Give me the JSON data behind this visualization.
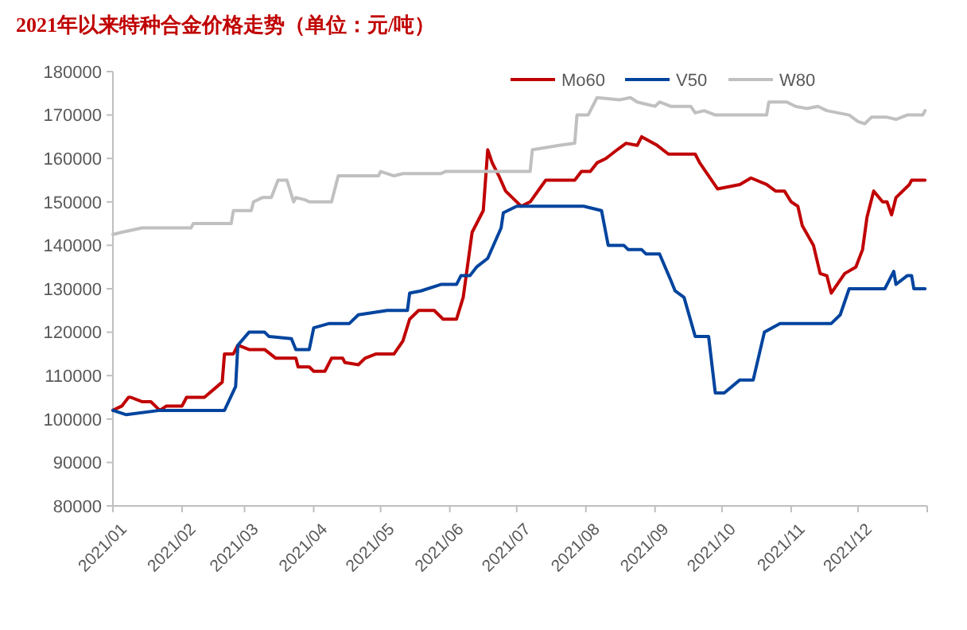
{
  "chart_data": {
    "type": "line",
    "title": "2021年以来特种合金价格走势（单位：元/吨）",
    "xlim": [
      "2021-01-01",
      "2022-01-01"
    ],
    "xticks": [
      {
        "value": "2021-01-01",
        "label": "2021/01"
      },
      {
        "value": "2021-02-01",
        "label": "2021/02"
      },
      {
        "value": "2021-03-01",
        "label": "2021/03"
      },
      {
        "value": "2021-04-01",
        "label": "2021/04"
      },
      {
        "value": "2021-05-01",
        "label": "2021/05"
      },
      {
        "value": "2021-06-01",
        "label": "2021/06"
      },
      {
        "value": "2021-07-01",
        "label": "2021/07"
      },
      {
        "value": "2021-08-01",
        "label": "2021/08"
      },
      {
        "value": "2021-09-01",
        "label": "2021/09"
      },
      {
        "value": "2021-10-01",
        "label": "2021/10"
      },
      {
        "value": "2021-11-01",
        "label": "2021/11"
      },
      {
        "value": "2021-12-01",
        "label": "2021/12"
      },
      {
        "value": "2022-01-01",
        "label": null
      }
    ],
    "ylim": [
      80000,
      180000
    ],
    "yticks": [
      80000,
      90000,
      100000,
      110000,
      120000,
      130000,
      140000,
      150000,
      160000,
      170000,
      180000
    ],
    "grid": false,
    "legend": "top right",
    "marker": "none",
    "line_style": "solid",
    "series": [
      {
        "name": "Mo60",
        "color": "#c00000",
        "x": [
          "2021-01-01",
          "2021-01-05",
          "2021-01-08",
          "2021-01-09",
          "2021-01-14",
          "2021-01-18",
          "2021-01-22",
          "2021-01-25",
          "2021-02-01",
          "2021-02-03",
          "2021-02-11",
          "2021-02-19",
          "2021-02-20",
          "2021-02-24",
          "2021-02-26",
          "2021-03-03",
          "2021-03-10",
          "2021-03-15",
          "2021-03-24",
          "2021-03-25",
          "2021-03-30",
          "2021-04-01",
          "2021-04-06",
          "2021-04-09",
          "2021-04-14",
          "2021-04-15",
          "2021-04-21",
          "2021-04-24",
          "2021-04-29",
          "2021-05-07",
          "2021-05-11",
          "2021-05-14",
          "2021-05-18",
          "2021-05-25",
          "2021-05-29",
          "2021-06-04",
          "2021-06-07",
          "2021-06-11",
          "2021-06-16",
          "2021-06-18",
          "2021-06-20",
          "2021-06-23",
          "2021-06-26",
          "2021-06-30",
          "2021-07-03",
          "2021-07-07",
          "2021-07-14",
          "2021-07-27",
          "2021-07-30",
          "2021-08-03",
          "2021-08-06",
          "2021-08-10",
          "2021-08-15",
          "2021-08-19",
          "2021-08-24",
          "2021-08-26",
          "2021-09-02",
          "2021-09-07",
          "2021-09-19",
          "2021-09-21",
          "2021-09-29",
          "2021-10-09",
          "2021-10-14",
          "2021-10-21",
          "2021-10-25",
          "2021-10-29",
          "2021-11-01",
          "2021-11-04",
          "2021-11-06",
          "2021-11-11",
          "2021-11-14",
          "2021-11-17",
          "2021-11-19",
          "2021-11-25",
          "2021-11-30",
          "2021-12-03",
          "2021-12-05",
          "2021-12-08",
          "2021-12-12",
          "2021-12-14",
          "2021-12-16",
          "2021-12-18",
          "2021-12-24",
          "2021-12-25",
          "2021-12-30",
          "2021-12-31"
        ],
        "values": [
          102000,
          103000,
          105000,
          105000,
          104000,
          104000,
          102000,
          103000,
          103000,
          105000,
          105000,
          108500,
          115000,
          115000,
          117000,
          116000,
          116000,
          114000,
          114000,
          112000,
          112000,
          111000,
          111000,
          114000,
          114000,
          113000,
          112500,
          114000,
          115000,
          115000,
          118000,
          123000,
          125000,
          125000,
          123000,
          123000,
          128000,
          143000,
          148000,
          162000,
          159000,
          156000,
          152500,
          150500,
          149000,
          150000,
          155000,
          155000,
          157000,
          157000,
          159000,
          160000,
          162000,
          163500,
          163000,
          165000,
          163000,
          161000,
          161000,
          159000,
          153000,
          154000,
          155500,
          154000,
          152500,
          152500,
          150000,
          149000,
          144500,
          140000,
          133500,
          133000,
          129000,
          133500,
          135000,
          139000,
          146500,
          152500,
          150000,
          150000,
          147000,
          151000,
          154000,
          155000,
          155000,
          155000
        ]
      },
      {
        "name": "V50",
        "color": "#00449e",
        "x": [
          "2021-01-01",
          "2021-01-07",
          "2021-01-22",
          "2021-02-20",
          "2021-02-25",
          "2021-02-26",
          "2021-03-03",
          "2021-03-10",
          "2021-03-12",
          "2021-03-22",
          "2021-03-24",
          "2021-03-30",
          "2021-04-01",
          "2021-04-08",
          "2021-04-17",
          "2021-04-21",
          "2021-05-04",
          "2021-05-13",
          "2021-05-14",
          "2021-05-19",
          "2021-05-28",
          "2021-06-04",
          "2021-06-06",
          "2021-06-10",
          "2021-06-13",
          "2021-06-18",
          "2021-06-24",
          "2021-06-25",
          "2021-07-01",
          "2021-07-14",
          "2021-07-31",
          "2021-08-08",
          "2021-08-11",
          "2021-08-18",
          "2021-08-20",
          "2021-08-26",
          "2021-08-28",
          "2021-09-03",
          "2021-09-08",
          "2021-09-10",
          "2021-09-14",
          "2021-09-19",
          "2021-09-25",
          "2021-09-28",
          "2021-10-02",
          "2021-10-09",
          "2021-10-15",
          "2021-10-20",
          "2021-10-27",
          "2021-11-19",
          "2021-11-23",
          "2021-11-27",
          "2021-12-13",
          "2021-12-17",
          "2021-12-18",
          "2021-12-23",
          "2021-12-25",
          "2021-12-26",
          "2021-12-31"
        ],
        "values": [
          102000,
          101000,
          102000,
          102000,
          107500,
          117000,
          120000,
          120000,
          119000,
          118500,
          116000,
          116000,
          121000,
          122000,
          122000,
          124000,
          125000,
          125000,
          129000,
          129500,
          131000,
          131000,
          133000,
          133000,
          135000,
          137000,
          144000,
          147500,
          149000,
          149000,
          149000,
          148000,
          140000,
          140000,
          139000,
          139000,
          138000,
          138000,
          132000,
          129500,
          128000,
          119000,
          119000,
          106000,
          106000,
          109000,
          109000,
          120000,
          122000,
          122000,
          124000,
          130000,
          130000,
          134000,
          131000,
          133000,
          133000,
          130000,
          130000
        ]
      },
      {
        "name": "W80",
        "color": "#c0c0c0",
        "x": [
          "2021-01-01",
          "2021-01-05",
          "2021-01-14",
          "2021-02-05",
          "2021-02-06",
          "2021-02-23",
          "2021-02-24",
          "2021-03-04",
          "2021-03-05",
          "2021-03-09",
          "2021-03-13",
          "2021-03-16",
          "2021-03-20",
          "2021-03-23",
          "2021-03-24",
          "2021-03-28",
          "2021-03-30",
          "2021-04-09",
          "2021-04-12",
          "2021-04-30",
          "2021-05-01",
          "2021-05-07",
          "2021-05-11",
          "2021-05-28",
          "2021-05-30",
          "2021-07-07",
          "2021-07-08",
          "2021-07-20",
          "2021-07-27",
          "2021-07-28",
          "2021-08-02",
          "2021-08-06",
          "2021-08-16",
          "2021-08-21",
          "2021-08-24",
          "2021-08-28",
          "2021-09-01",
          "2021-09-03",
          "2021-09-08",
          "2021-09-17",
          "2021-09-19",
          "2021-09-23",
          "2021-09-28",
          "2021-10-21",
          "2021-10-22",
          "2021-10-30",
          "2021-11-03",
          "2021-11-08",
          "2021-11-13",
          "2021-11-17",
          "2021-11-27",
          "2021-12-01",
          "2021-12-04",
          "2021-12-07",
          "2021-12-14",
          "2021-12-18",
          "2021-12-23",
          "2021-12-30",
          "2021-12-31"
        ],
        "values": [
          142500,
          143000,
          144000,
          144000,
          145000,
          145000,
          148000,
          148000,
          150000,
          151000,
          151000,
          155000,
          155000,
          150000,
          151000,
          150500,
          150000,
          150000,
          156000,
          156000,
          157000,
          156000,
          156500,
          156500,
          157000,
          157000,
          162000,
          163000,
          163500,
          170000,
          170000,
          174000,
          173500,
          174000,
          173000,
          172500,
          172000,
          173000,
          172000,
          172000,
          170500,
          171000,
          170000,
          170000,
          173000,
          173000,
          172000,
          171500,
          172000,
          171000,
          170000,
          168500,
          168000,
          169500,
          169500,
          169000,
          170000,
          170000,
          171000
        ]
      }
    ]
  }
}
